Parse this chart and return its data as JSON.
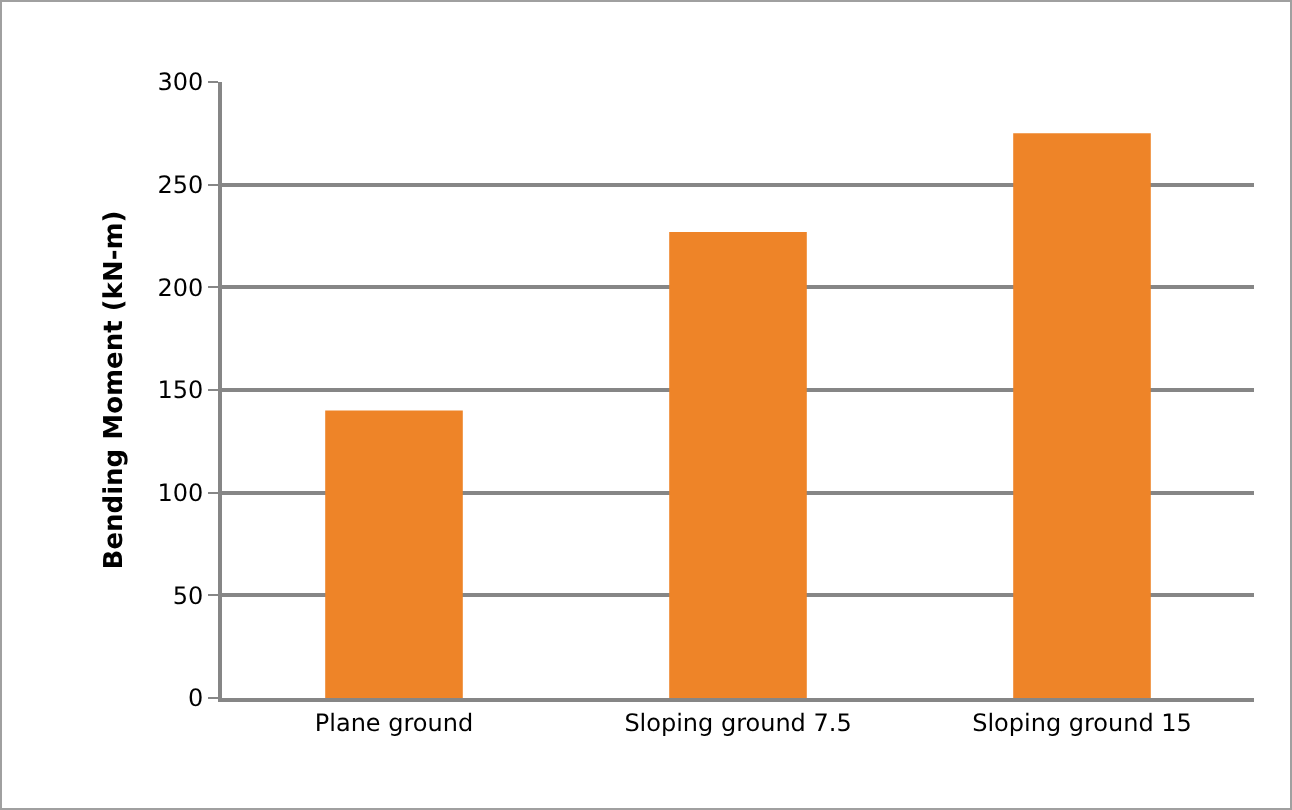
{
  "chart_data": {
    "type": "bar",
    "ylabel": "Bending Moment (kN-m)",
    "categories": [
      "Plane ground",
      "Sloping ground 7.5",
      "Sloping ground 15"
    ],
    "values": [
      140,
      227,
      275
    ],
    "color": "#ee8428",
    "ylim": [
      0,
      300
    ],
    "yticks": [
      0,
      50,
      100,
      150,
      200,
      250,
      300
    ],
    "grid": "y"
  }
}
